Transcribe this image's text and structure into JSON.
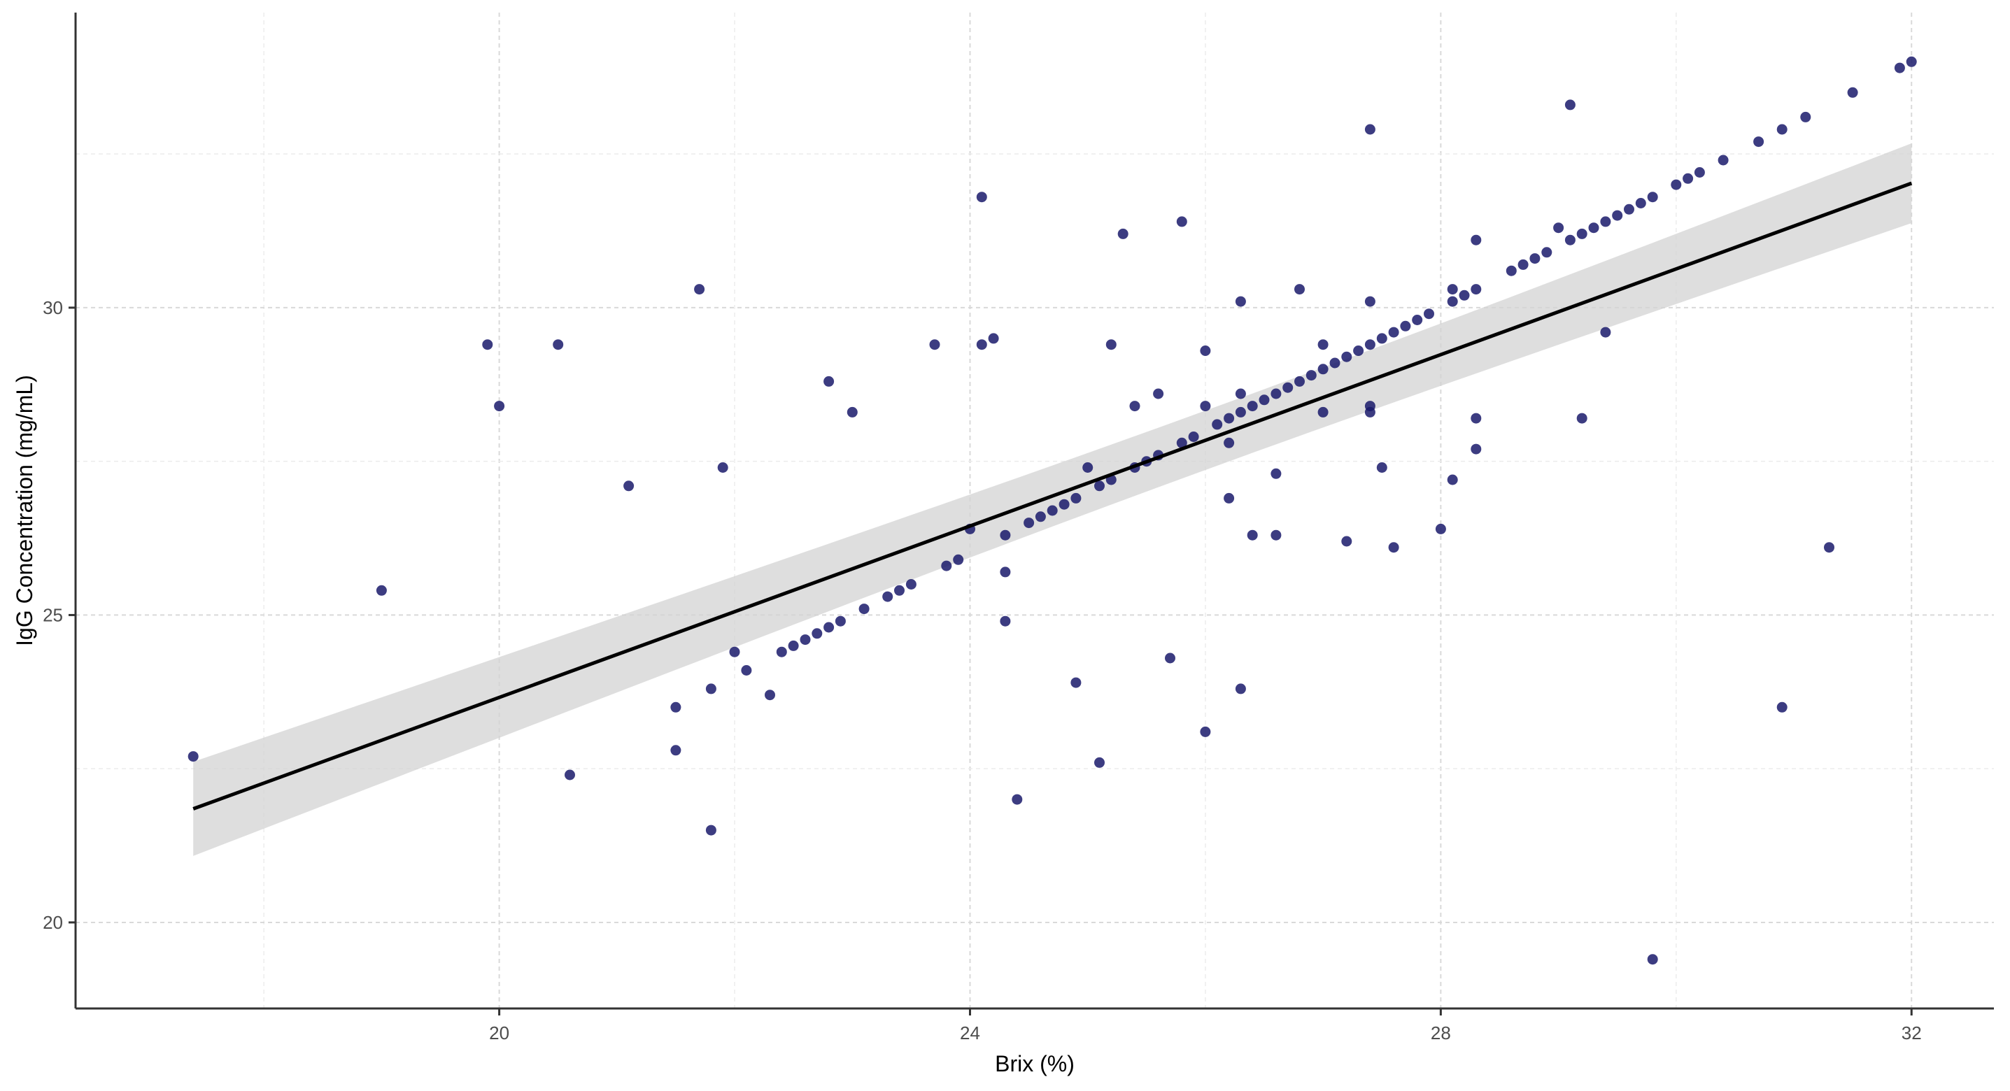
{
  "chart_data": {
    "type": "scatter",
    "title": "",
    "xlabel": "Brix (%)",
    "ylabel": "IgG Concentration (mg/mL)",
    "xlim": [
      16.4,
      32.7
    ],
    "ylim": [
      18.6,
      34.8
    ],
    "x_ticks": [
      20,
      24,
      28,
      32
    ],
    "x_tick_labels": [
      "20",
      "24",
      "28",
      "32"
    ],
    "y_ticks": [
      20,
      25,
      30
    ],
    "y_tick_labels": [
      "20",
      "25",
      "30"
    ],
    "grid": true,
    "legend": "none",
    "colors": {
      "points": "#1a1a6b",
      "fit_line": "#000000",
      "confidence_band": "#d3d3d3"
    },
    "fit": {
      "method": "linear",
      "x_range": [
        17.4,
        32.0
      ],
      "intercept": 9.72,
      "slope": 0.697,
      "se_band": true
    },
    "points": [
      [
        17.4,
        22.7
      ],
      [
        19.0,
        25.4
      ],
      [
        19.9,
        29.4
      ],
      [
        20.0,
        28.4
      ],
      [
        20.5,
        29.4
      ],
      [
        20.6,
        22.4
      ],
      [
        21.1,
        27.1
      ],
      [
        21.5,
        23.5
      ],
      [
        21.5,
        22.8
      ],
      [
        21.7,
        30.3
      ],
      [
        21.8,
        23.8
      ],
      [
        21.8,
        21.5
      ],
      [
        21.9,
        27.4
      ],
      [
        22.0,
        24.4
      ],
      [
        22.1,
        24.1
      ],
      [
        22.3,
        23.7
      ],
      [
        22.4,
        24.4
      ],
      [
        22.5,
        24.5
      ],
      [
        22.6,
        24.6
      ],
      [
        22.7,
        24.7
      ],
      [
        22.8,
        24.8
      ],
      [
        22.8,
        28.8
      ],
      [
        22.9,
        24.9
      ],
      [
        23.0,
        28.3
      ],
      [
        23.1,
        25.1
      ],
      [
        23.3,
        25.3
      ],
      [
        23.4,
        25.4
      ],
      [
        23.5,
        25.5
      ],
      [
        23.7,
        29.4
      ],
      [
        23.8,
        25.8
      ],
      [
        23.9,
        25.9
      ],
      [
        24.0,
        26.4
      ],
      [
        24.1,
        31.8
      ],
      [
        24.1,
        29.4
      ],
      [
        24.2,
        29.5
      ],
      [
        24.3,
        26.3
      ],
      [
        24.3,
        25.7
      ],
      [
        24.3,
        24.9
      ],
      [
        24.4,
        22.0
      ],
      [
        24.5,
        26.5
      ],
      [
        24.6,
        26.6
      ],
      [
        24.7,
        26.7
      ],
      [
        24.8,
        26.8
      ],
      [
        24.9,
        26.9
      ],
      [
        24.9,
        23.9
      ],
      [
        25.0,
        27.4
      ],
      [
        25.1,
        27.1
      ],
      [
        25.1,
        22.6
      ],
      [
        25.2,
        27.2
      ],
      [
        25.2,
        29.4
      ],
      [
        25.3,
        31.2
      ],
      [
        25.4,
        27.4
      ],
      [
        25.4,
        28.4
      ],
      [
        25.5,
        27.5
      ],
      [
        25.6,
        27.6
      ],
      [
        25.6,
        28.6
      ],
      [
        25.7,
        24.3
      ],
      [
        25.8,
        27.8
      ],
      [
        25.8,
        31.4
      ],
      [
        25.9,
        27.9
      ],
      [
        26.0,
        28.4
      ],
      [
        26.0,
        29.3
      ],
      [
        26.0,
        23.1
      ],
      [
        26.1,
        28.1
      ],
      [
        26.2,
        28.2
      ],
      [
        26.2,
        27.8
      ],
      [
        26.2,
        26.9
      ],
      [
        26.3,
        28.3
      ],
      [
        26.3,
        28.6
      ],
      [
        26.3,
        30.1
      ],
      [
        26.3,
        23.8
      ],
      [
        26.4,
        28.4
      ],
      [
        26.4,
        26.3
      ],
      [
        26.5,
        28.5
      ],
      [
        26.6,
        28.6
      ],
      [
        26.6,
        27.3
      ],
      [
        26.6,
        26.3
      ],
      [
        26.7,
        28.7
      ],
      [
        26.8,
        28.8
      ],
      [
        26.8,
        30.3
      ],
      [
        26.9,
        28.9
      ],
      [
        27.0,
        29.0
      ],
      [
        27.0,
        29.4
      ],
      [
        27.0,
        28.3
      ],
      [
        27.1,
        29.1
      ],
      [
        27.2,
        29.2
      ],
      [
        27.2,
        26.2
      ],
      [
        27.3,
        29.3
      ],
      [
        27.4,
        29.4
      ],
      [
        27.4,
        32.9
      ],
      [
        27.4,
        30.1
      ],
      [
        27.4,
        28.4
      ],
      [
        27.4,
        28.3
      ],
      [
        27.5,
        29.5
      ],
      [
        27.5,
        27.4
      ],
      [
        27.6,
        29.6
      ],
      [
        27.6,
        26.1
      ],
      [
        27.7,
        29.7
      ],
      [
        27.8,
        29.8
      ],
      [
        27.9,
        29.9
      ],
      [
        28.0,
        26.4
      ],
      [
        28.1,
        30.1
      ],
      [
        28.1,
        30.3
      ],
      [
        28.1,
        27.2
      ],
      [
        28.2,
        30.2
      ],
      [
        28.3,
        30.3
      ],
      [
        28.3,
        31.1
      ],
      [
        28.3,
        28.2
      ],
      [
        28.3,
        27.7
      ],
      [
        28.6,
        30.6
      ],
      [
        28.7,
        30.7
      ],
      [
        28.8,
        30.8
      ],
      [
        28.9,
        30.9
      ],
      [
        29.0,
        31.3
      ],
      [
        29.1,
        31.1
      ],
      [
        29.1,
        33.3
      ],
      [
        29.2,
        31.2
      ],
      [
        29.2,
        28.2
      ],
      [
        29.3,
        31.3
      ],
      [
        29.4,
        31.4
      ],
      [
        29.4,
        29.6
      ],
      [
        29.5,
        31.5
      ],
      [
        29.6,
        31.6
      ],
      [
        29.7,
        31.7
      ],
      [
        29.8,
        31.8
      ],
      [
        29.8,
        19.4
      ],
      [
        30.0,
        32.0
      ],
      [
        30.1,
        32.1
      ],
      [
        30.2,
        32.2
      ],
      [
        30.4,
        32.4
      ],
      [
        30.7,
        32.7
      ],
      [
        30.9,
        32.9
      ],
      [
        30.9,
        23.5
      ],
      [
        31.1,
        33.1
      ],
      [
        31.3,
        26.1
      ],
      [
        31.5,
        33.5
      ],
      [
        31.9,
        33.9
      ],
      [
        32.0,
        34.0
      ]
    ]
  }
}
